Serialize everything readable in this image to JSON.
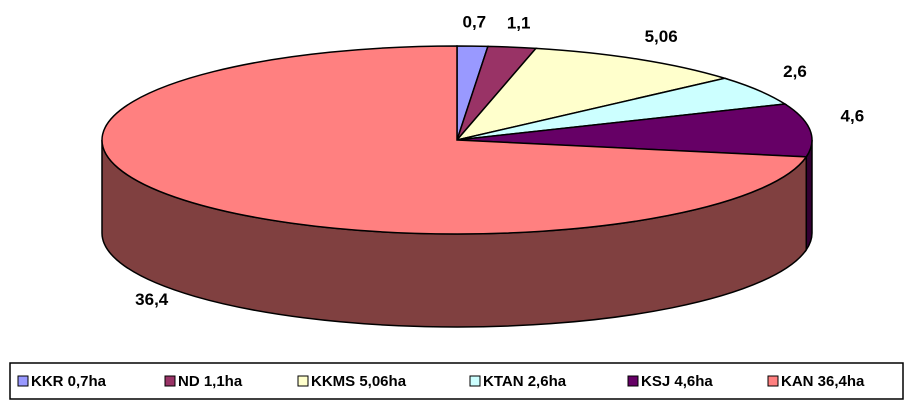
{
  "chart_data": {
    "type": "pie",
    "categories": [
      "KKR 0,7ha",
      "ND 1,1ha",
      "KKMS 5,06ha",
      "KTAN 2,6ha",
      "KSJ 4,6ha",
      "KAN 36,4ha"
    ],
    "values": [
      0.7,
      1.1,
      5.06,
      2.6,
      4.6,
      36.4
    ],
    "value_labels": [
      "0,7",
      "1,1",
      "5,06",
      "2,6",
      "4,6",
      "36,4"
    ],
    "colors": [
      "#9999ff",
      "#993366",
      "#ffffcc",
      "#ccffff",
      "#660066",
      "#ff8080"
    ],
    "legend": "bottom"
  }
}
